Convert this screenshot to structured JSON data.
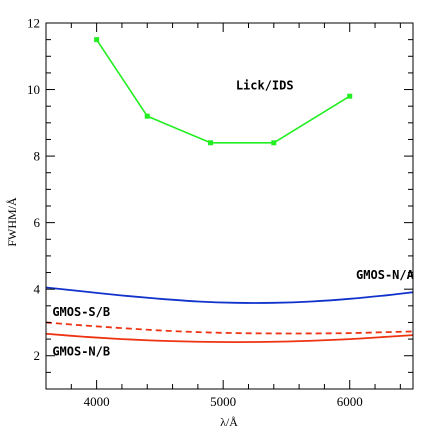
{
  "chart_data": {
    "type": "line",
    "xlabel": "λ/Å",
    "ylabel": "FWHM/Å",
    "xlim": [
      3600,
      6500
    ],
    "ylim": [
      1,
      12
    ],
    "x_ticks": [
      4000,
      5000,
      6000
    ],
    "y_ticks": [
      2,
      4,
      6,
      8,
      10,
      12
    ],
    "x_minor_step": 200,
    "y_minor_step": 0.5,
    "grid": false,
    "series": [
      {
        "name": "Lick/IDS",
        "color": "#22ee22",
        "style": "solid",
        "markers": true,
        "x": [
          4000,
          4400,
          4900,
          5400,
          6000
        ],
        "y": [
          11.5,
          9.2,
          8.4,
          8.4,
          9.8
        ]
      },
      {
        "name": "GMOS-N/A",
        "color": "#1133cc",
        "style": "solid",
        "markers": false,
        "x": [
          3600,
          3900,
          4200,
          4500,
          4800,
          5100,
          5400,
          5700,
          6000,
          6300,
          6500
        ],
        "y": [
          4.05,
          3.93,
          3.81,
          3.71,
          3.63,
          3.59,
          3.59,
          3.63,
          3.71,
          3.82,
          3.91
        ]
      },
      {
        "name": "GMOS-S/B",
        "color": "#ee3311",
        "style": "dashed",
        "markers": false,
        "x": [
          3600,
          3900,
          4200,
          4500,
          4800,
          5100,
          5400,
          5700,
          6000,
          6300,
          6500
        ],
        "y": [
          3.0,
          2.91,
          2.83,
          2.76,
          2.71,
          2.68,
          2.67,
          2.67,
          2.68,
          2.71,
          2.73
        ]
      },
      {
        "name": "GMOS-N/B",
        "color": "#ee3311",
        "style": "solid",
        "markers": false,
        "x": [
          3600,
          3900,
          4200,
          4500,
          4800,
          5100,
          5400,
          5700,
          6000,
          6300,
          6500
        ],
        "y": [
          2.66,
          2.57,
          2.5,
          2.45,
          2.42,
          2.41,
          2.42,
          2.45,
          2.5,
          2.57,
          2.62
        ]
      }
    ],
    "annotations": [
      {
        "text": "Lick/IDS",
        "x": 5100,
        "y": 10.0
      },
      {
        "text": "GMOS-N/A",
        "x": 6050,
        "y": 4.3
      },
      {
        "text": "GMOS-S/B",
        "x": 3650,
        "y": 3.2
      },
      {
        "text": "GMOS-N/B",
        "x": 3650,
        "y": 2.0
      }
    ]
  }
}
